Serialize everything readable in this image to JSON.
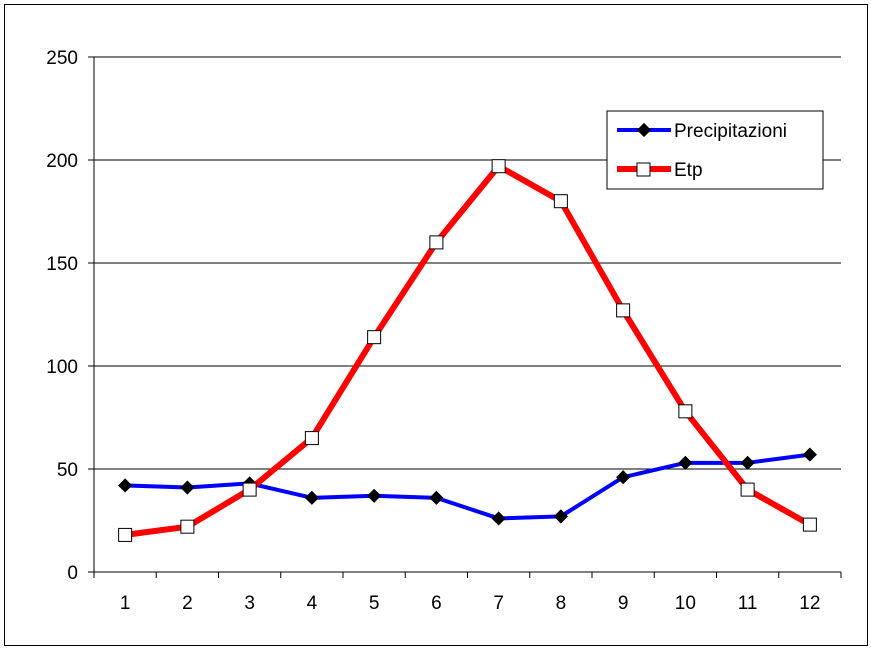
{
  "chart_data": {
    "type": "line",
    "title": "",
    "xlabel": "",
    "ylabel": "",
    "categories": [
      "1",
      "2",
      "3",
      "4",
      "5",
      "6",
      "7",
      "8",
      "9",
      "10",
      "11",
      "12"
    ],
    "ylim": [
      0,
      250
    ],
    "yticks": [
      "0",
      "50",
      "100",
      "150",
      "200",
      "250"
    ],
    "grid": "horizontal",
    "legend_position": "top-right",
    "series": [
      {
        "name": "Precipitazioni",
        "color": "#0000ff",
        "marker": "filled-diamond",
        "values": [
          42,
          41,
          43,
          36,
          37,
          36,
          26,
          27,
          46,
          53,
          53,
          57
        ]
      },
      {
        "name": "Etp",
        "color": "#ff0000",
        "marker": "open-square",
        "values": [
          18,
          22,
          40,
          65,
          114,
          160,
          197,
          180,
          127,
          78,
          40,
          23
        ]
      }
    ]
  }
}
